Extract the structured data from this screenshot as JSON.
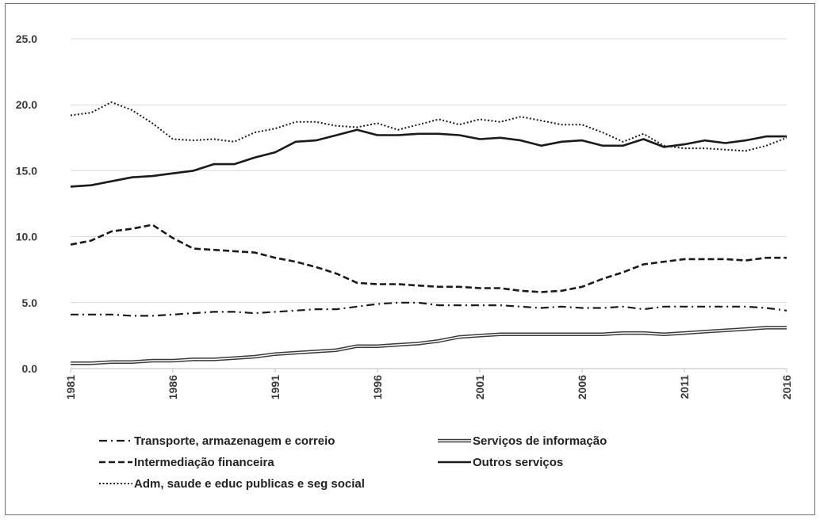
{
  "chart_data": {
    "type": "line",
    "x": [
      1981,
      1982,
      1983,
      1984,
      1985,
      1986,
      1987,
      1988,
      1989,
      1990,
      1991,
      1992,
      1993,
      1994,
      1995,
      1996,
      1997,
      1998,
      1999,
      2000,
      2001,
      2002,
      2003,
      2004,
      2005,
      2006,
      2007,
      2008,
      2009,
      2010,
      2011,
      2012,
      2013,
      2014,
      2015,
      2016
    ],
    "x_tick_labels": [
      "1981",
      "1986",
      "1991",
      "1996",
      "2001",
      "2006",
      "2011",
      "2016"
    ],
    "y_tick_labels": [
      "0.0",
      "5.0",
      "10.0",
      "15.0",
      "20.0",
      "25.0"
    ],
    "ylim": [
      0,
      25
    ],
    "grid": "horizontal",
    "legend_position": "bottom",
    "series": [
      {
        "name": "Transporte, armazenagem e correio",
        "style": "dash-dot",
        "values": [
          4.1,
          4.1,
          4.1,
          4.0,
          4.0,
          4.1,
          4.2,
          4.3,
          4.3,
          4.2,
          4.3,
          4.4,
          4.5,
          4.5,
          4.7,
          4.9,
          5.0,
          5.0,
          4.8,
          4.8,
          4.8,
          4.8,
          4.7,
          4.6,
          4.7,
          4.6,
          4.6,
          4.7,
          4.5,
          4.7,
          4.7,
          4.7,
          4.7,
          4.7,
          4.6,
          4.4
        ]
      },
      {
        "name": "Serviços de informação",
        "style": "double",
        "values": [
          0.4,
          0.4,
          0.5,
          0.5,
          0.6,
          0.6,
          0.7,
          0.7,
          0.8,
          0.9,
          1.1,
          1.2,
          1.3,
          1.4,
          1.7,
          1.7,
          1.8,
          1.9,
          2.1,
          2.4,
          2.5,
          2.6,
          2.6,
          2.6,
          2.6,
          2.6,
          2.6,
          2.7,
          2.7,
          2.6,
          2.7,
          2.8,
          2.9,
          3.0,
          3.1,
          3.1
        ]
      },
      {
        "name": "Intermediação financeira",
        "style": "dashed",
        "values": [
          9.4,
          9.7,
          10.4,
          10.6,
          10.9,
          9.9,
          9.1,
          9.0,
          8.9,
          8.8,
          8.4,
          8.1,
          7.7,
          7.2,
          6.5,
          6.4,
          6.4,
          6.3,
          6.2,
          6.2,
          6.1,
          6.1,
          5.9,
          5.8,
          5.9,
          6.2,
          6.8,
          7.3,
          7.9,
          8.1,
          8.3,
          8.3,
          8.3,
          8.2,
          8.4,
          8.4
        ]
      },
      {
        "name": "Outros serviços",
        "style": "solid",
        "values": [
          13.8,
          13.9,
          14.2,
          14.5,
          14.6,
          14.8,
          15.0,
          15.5,
          15.5,
          16.0,
          16.4,
          17.2,
          17.3,
          17.7,
          18.1,
          17.7,
          17.7,
          17.8,
          17.8,
          17.7,
          17.4,
          17.5,
          17.3,
          16.9,
          17.2,
          17.3,
          16.9,
          16.9,
          17.4,
          16.8,
          17.0,
          17.3,
          17.1,
          17.3,
          17.6,
          17.6
        ]
      },
      {
        "name": "Adm, saude e educ publicas e seg social",
        "style": "dotted",
        "values": [
          19.2,
          19.4,
          20.2,
          19.6,
          18.6,
          17.4,
          17.3,
          17.4,
          17.2,
          17.9,
          18.2,
          18.7,
          18.7,
          18.4,
          18.3,
          18.6,
          18.1,
          18.5,
          18.9,
          18.5,
          18.9,
          18.7,
          19.1,
          18.8,
          18.5,
          18.5,
          17.9,
          17.2,
          17.8,
          16.9,
          16.7,
          16.7,
          16.6,
          16.5,
          16.9,
          17.5
        ]
      }
    ]
  }
}
